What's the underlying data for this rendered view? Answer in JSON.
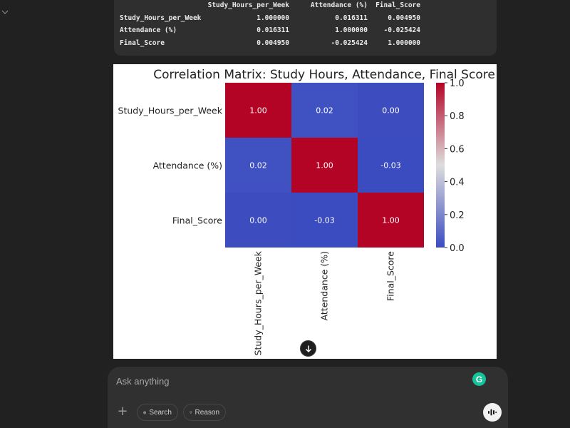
{
  "dataframe": {
    "columns": [
      "Study_Hours_per_Week",
      "Attendance (%)",
      "Final_Score"
    ],
    "rows": [
      {
        "label": "Study_Hours_per_Week",
        "values": [
          "1.000000",
          "0.016311",
          "0.004950"
        ]
      },
      {
        "label": "Attendance (%)",
        "values": [
          "0.016311",
          "1.000000",
          "-0.025424"
        ]
      },
      {
        "label": "Final_Score",
        "values": [
          "0.004950",
          "-0.025424",
          "1.000000"
        ]
      }
    ]
  },
  "chart_data": {
    "type": "heatmap",
    "title": "Correlation Matrix: Study Hours, Attendance, Final Score",
    "rows": [
      "Study_Hours_per_Week",
      "Attendance (%)",
      "Final_Score"
    ],
    "columns": [
      "Study_Hours_per_Week",
      "Attendance (%)",
      "Final_Score"
    ],
    "values": [
      [
        1.0,
        0.016311,
        0.00495
      ],
      [
        0.016311,
        1.0,
        -0.025424
      ],
      [
        0.00495,
        -0.025424,
        1.0
      ]
    ],
    "annotations": [
      [
        "1.00",
        "0.02",
        "0.00"
      ],
      [
        "0.02",
        "1.00",
        "-0.03"
      ],
      [
        "0.00",
        "-0.03",
        "1.00"
      ]
    ],
    "colormap": "coolwarm",
    "colorbar": {
      "min": 0.0,
      "max": 1.0,
      "ticks": [
        "0.0",
        "0.2",
        "0.4",
        "0.6",
        "0.8",
        "1.0"
      ]
    }
  },
  "composer": {
    "placeholder": "Ask anything",
    "search_label": "Search",
    "reason_label": "Reason",
    "grammarly_letter": "G"
  },
  "colors": {
    "accent": "#15c39a",
    "background": "#212121"
  }
}
